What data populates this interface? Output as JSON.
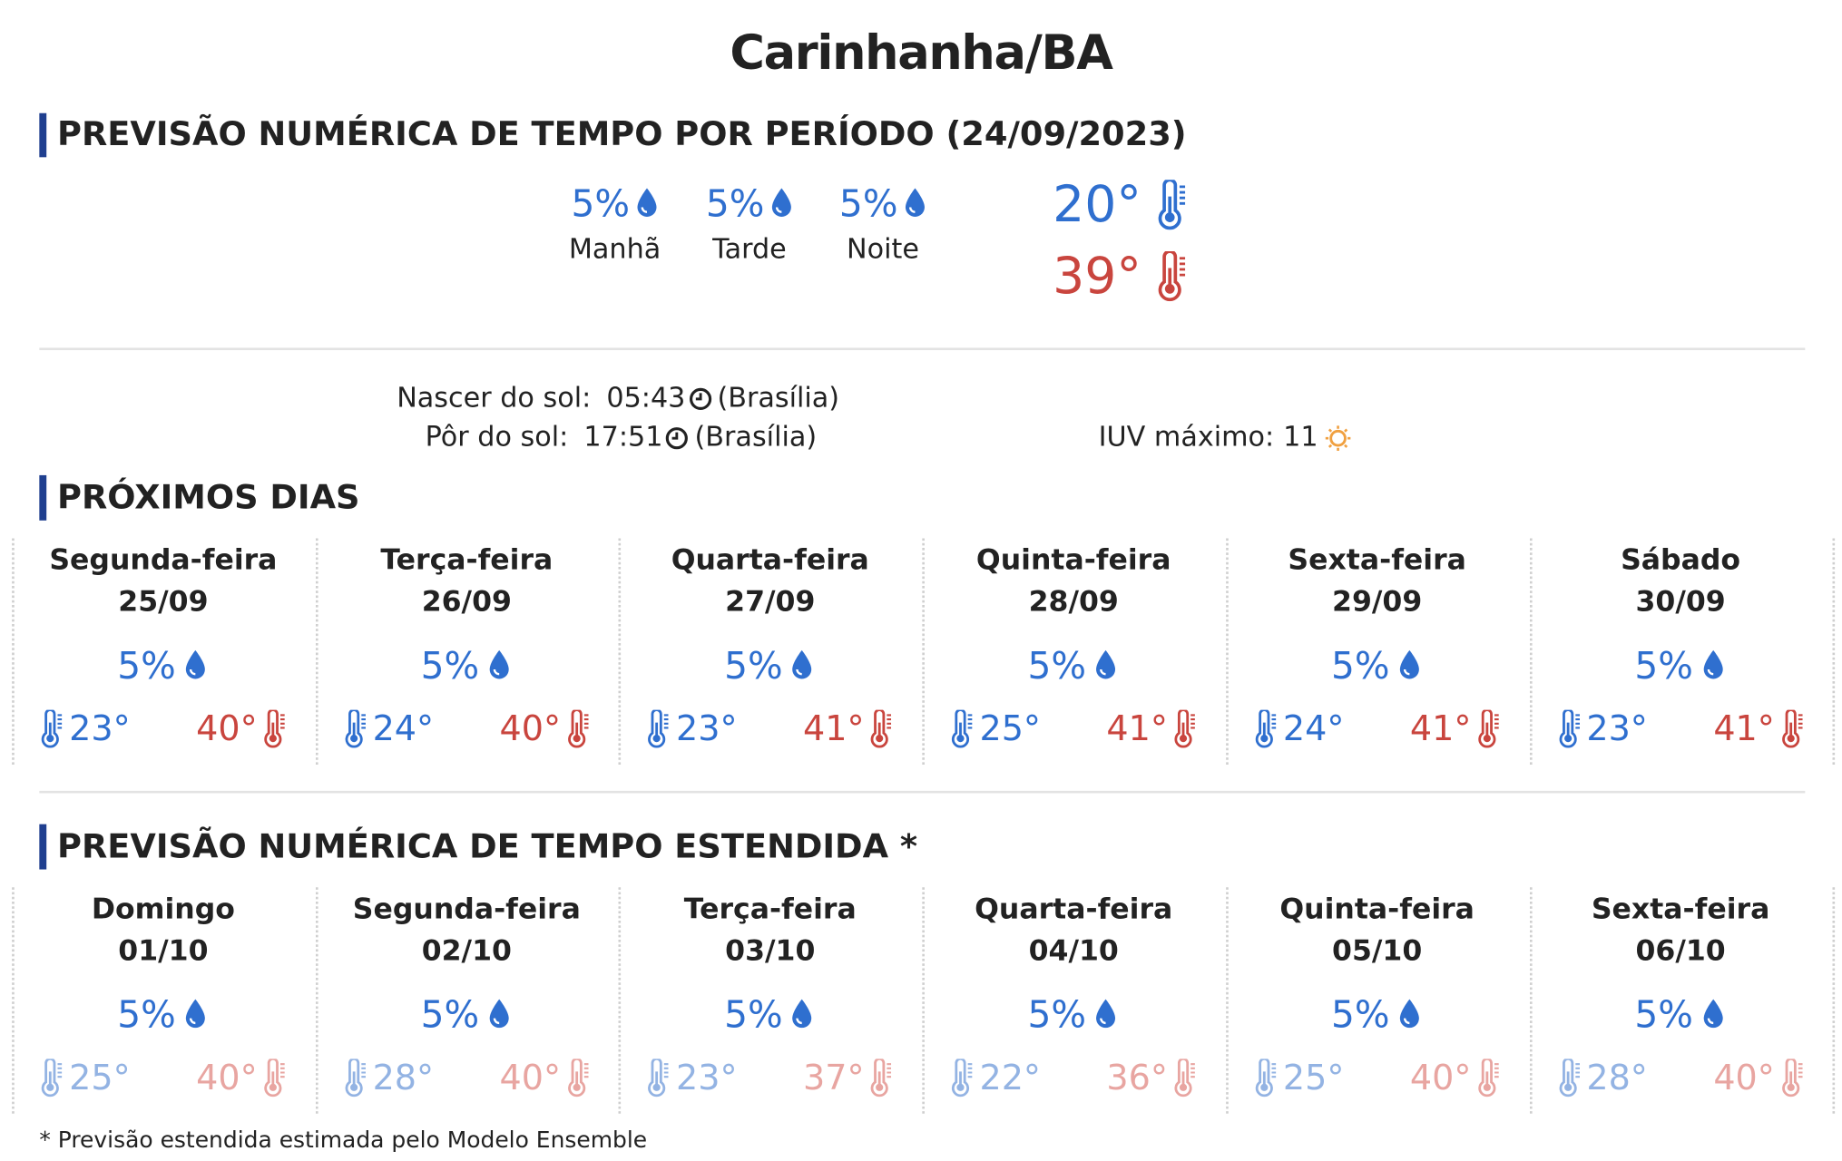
{
  "header": {
    "title": "Carinhanha/BA"
  },
  "period": {
    "title": "PREVISÃO NUMÉRICA DE TEMPO POR PERÍODO (24/09/2023)",
    "slots": [
      {
        "chance": "5%",
        "label": "Manhã"
      },
      {
        "chance": "5%",
        "label": "Tarde"
      },
      {
        "chance": "5%",
        "label": "Noite"
      }
    ],
    "min": "20°",
    "max": "39°"
  },
  "sun": {
    "sunrise_label": "Nascer do sol:",
    "sunrise": "05:43",
    "sunrise_zone": "(Brasília)",
    "sunset_label": "Pôr do sol:",
    "sunset": "17:51",
    "sunset_zone": "(Brasília)",
    "uv_label": "IUV máximo:",
    "uv": "11"
  },
  "next_days": {
    "title": "PRÓXIMOS DIAS",
    "days": [
      {
        "day": "Segunda-feira",
        "date": "25/09",
        "chance": "5%",
        "min": "23°",
        "max": "40°"
      },
      {
        "day": "Terça-feira",
        "date": "26/09",
        "chance": "5%",
        "min": "24°",
        "max": "40°"
      },
      {
        "day": "Quarta-feira",
        "date": "27/09",
        "chance": "5%",
        "min": "23°",
        "max": "41°"
      },
      {
        "day": "Quinta-feira",
        "date": "28/09",
        "chance": "5%",
        "min": "25°",
        "max": "41°"
      },
      {
        "day": "Sexta-feira",
        "date": "29/09",
        "chance": "5%",
        "min": "24°",
        "max": "41°"
      },
      {
        "day": "Sábado",
        "date": "30/09",
        "chance": "5%",
        "min": "23°",
        "max": "41°"
      }
    ]
  },
  "extended": {
    "title": "PREVISÃO NUMÉRICA DE TEMPO ESTENDIDA *",
    "days": [
      {
        "day": "Domingo",
        "date": "01/10",
        "chance": "5%",
        "min": "25°",
        "max": "40°"
      },
      {
        "day": "Segunda-feira",
        "date": "02/10",
        "chance": "5%",
        "min": "28°",
        "max": "40°"
      },
      {
        "day": "Terça-feira",
        "date": "03/10",
        "chance": "5%",
        "min": "23°",
        "max": "37°"
      },
      {
        "day": "Quarta-feira",
        "date": "04/10",
        "chance": "5%",
        "min": "22°",
        "max": "36°"
      },
      {
        "day": "Quinta-feira",
        "date": "05/10",
        "chance": "5%",
        "min": "25°",
        "max": "40°"
      },
      {
        "day": "Sexta-feira",
        "date": "06/10",
        "chance": "5%",
        "min": "28°",
        "max": "40°"
      }
    ]
  },
  "footnote": "* Previsão estendida estimada pelo Modelo Ensemble"
}
